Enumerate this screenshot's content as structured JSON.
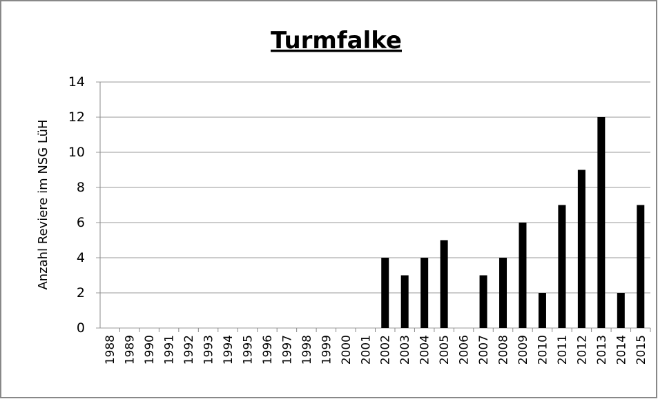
{
  "chart_data": {
    "type": "bar",
    "title": "Turmfalke",
    "ylabel": "Anzahl Reviere im NSG LüH",
    "categories": [
      "1988",
      "1989",
      "1990",
      "1991",
      "1992",
      "1993",
      "1994",
      "1995",
      "1996",
      "1997",
      "1998",
      "1999",
      "2000",
      "2001",
      "2002",
      "2003",
      "2004",
      "2005",
      "2006",
      "2007",
      "2008",
      "2009",
      "2010",
      "2011",
      "2012",
      "2013",
      "2014",
      "2015"
    ],
    "values": [
      0,
      0,
      0,
      0,
      0,
      0,
      0,
      0,
      0,
      0,
      0,
      0,
      0,
      0,
      4,
      3,
      4,
      5,
      0,
      3,
      4,
      6,
      2,
      7,
      9,
      12,
      2,
      7
    ],
    "color": "#000000",
    "ylim": [
      0,
      14
    ],
    "yticks": [
      0,
      2,
      4,
      6,
      8,
      10,
      12,
      14
    ],
    "grid": true
  }
}
